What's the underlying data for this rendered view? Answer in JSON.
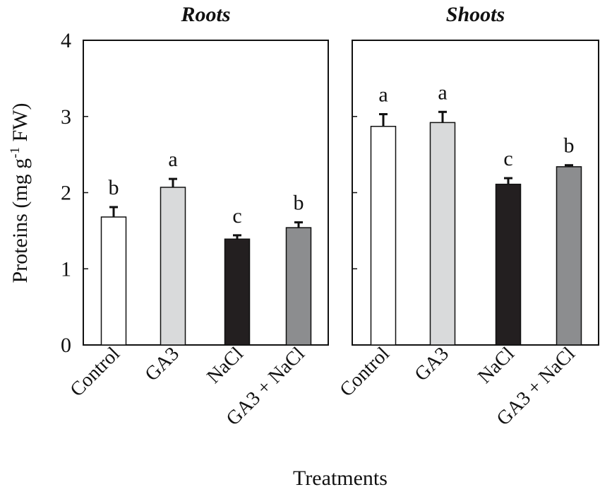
{
  "chart_data": {
    "type": "bar",
    "title": "",
    "xlabel": "Treatments",
    "ylabel": {
      "prefix": "Proteins (mg g",
      "superscript": "-1",
      "suffix": " FW)"
    },
    "ylim": [
      0,
      4
    ],
    "yticks": [
      "0",
      "1",
      "2",
      "3",
      "4"
    ],
    "categories": [
      "Control",
      "GA3",
      "NaCl",
      "GA3 + NaCl"
    ],
    "bar_colors": [
      "#ffffff",
      "#d9dadb",
      "#231f20",
      "#8c8d8f"
    ],
    "panels": [
      {
        "title": "Roots",
        "values": [
          1.68,
          2.07,
          1.39,
          1.54
        ],
        "errors": [
          0.13,
          0.11,
          0.05,
          0.07
        ],
        "letters": [
          "b",
          "a",
          "c",
          "b"
        ]
      },
      {
        "title": "Shoots",
        "values": [
          2.87,
          2.92,
          2.11,
          2.34
        ],
        "errors": [
          0.16,
          0.14,
          0.08,
          0.02
        ],
        "letters": [
          "a",
          "a",
          "c",
          "b"
        ]
      }
    ]
  }
}
